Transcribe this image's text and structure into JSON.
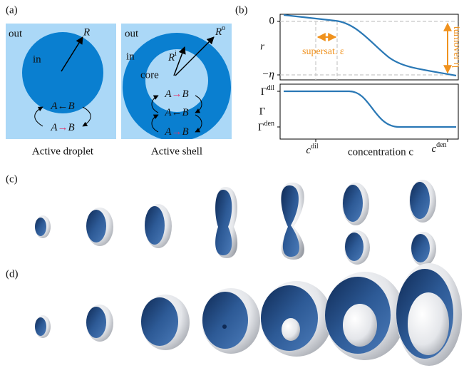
{
  "panel_a": {
    "label": "(a)",
    "droplet": {
      "out": "out",
      "in": "in",
      "radius": "R",
      "reaction_1": {
        "a": "A",
        "arrow": "←",
        "b": "B"
      },
      "reaction_2": {
        "a": "A",
        "arrow": "→",
        "b": "B"
      },
      "caption": "Active droplet"
    },
    "shell": {
      "out": "out",
      "in": "in",
      "core": "core",
      "inner_radius": {
        "base": "R",
        "sup": "i"
      },
      "outer_radius": {
        "base": "R",
        "sup": "o"
      },
      "reaction_1": {
        "a": "A",
        "arrow": "→",
        "b": "B"
      },
      "reaction_2": {
        "a": "A",
        "arrow": "←",
        "b": "B"
      },
      "reaction_3": {
        "a": "A",
        "arrow": "→",
        "b": "B"
      },
      "caption": "Active shell"
    }
  },
  "panel_b": {
    "label": "(b)",
    "top": {
      "ylabel": "r",
      "yticks": [
        "0",
        "−η"
      ],
      "supersaturation": "supersat. ε",
      "turnover": "turnover η"
    },
    "bottom": {
      "ylabel": "Γ",
      "yticks": [
        {
          "base": "Γ",
          "sup": "dil"
        },
        {
          "base": "Γ",
          "sup": "den"
        }
      ]
    },
    "xticks": [
      {
        "base": "c",
        "sup": "dil"
      },
      {
        "base": "c",
        "sup": "den"
      }
    ],
    "xlabel": "concentration c"
  },
  "panel_c": {
    "label": "(c)"
  },
  "panel_d": {
    "label": "(d)"
  }
}
